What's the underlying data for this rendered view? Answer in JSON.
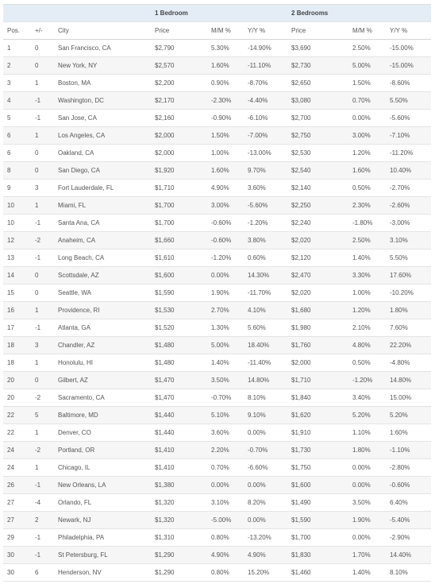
{
  "groups": {
    "one_bedroom": "1 Bedroom",
    "two_bedrooms": "2 Bedrooms"
  },
  "columns": {
    "pos": "Pos.",
    "change": "+/-",
    "city": "City",
    "price1": "Price",
    "mm1": "M/M %",
    "yy1": "Y/Y %",
    "price2": "Price",
    "mm2": "M/M %",
    "yy2": "Y/Y %"
  },
  "rows": [
    [
      "1",
      "0",
      "San Francisco, CA",
      "$2,790",
      "5.30%",
      "-14.90%",
      "$3,690",
      "2.50%",
      "-15.00%"
    ],
    [
      "2",
      "0",
      "New York, NY",
      "$2,570",
      "1.60%",
      "-11.10%",
      "$2,730",
      "5.00%",
      "-15.00%"
    ],
    [
      "3",
      "1",
      "Boston, MA",
      "$2,200",
      "0.90%",
      "-8.70%",
      "$2,650",
      "1.50%",
      "-8.60%"
    ],
    [
      "4",
      "-1",
      "Washington, DC",
      "$2,170",
      "-2.30%",
      "-4.40%",
      "$3,080",
      "0.70%",
      "5.50%"
    ],
    [
      "5",
      "-1",
      "San Jose, CA",
      "$2,160",
      "-0.90%",
      "-6.10%",
      "$2,700",
      "0.00%",
      "-5.60%"
    ],
    [
      "6",
      "1",
      "Los Angeles, CA",
      "$2,000",
      "1.50%",
      "-7.00%",
      "$2,750",
      "3.00%",
      "-7.10%"
    ],
    [
      "6",
      "0",
      "Oakland, CA",
      "$2,000",
      "1.00%",
      "-13.00%",
      "$2,530",
      "1.20%",
      "-11.20%"
    ],
    [
      "8",
      "0",
      "San Diego, CA",
      "$1,920",
      "1.60%",
      "9.70%",
      "$2,540",
      "1.60%",
      "10.40%"
    ],
    [
      "9",
      "3",
      "Fort Lauderdale, FL",
      "$1,710",
      "4.90%",
      "3.60%",
      "$2,140",
      "0.50%",
      "-2.70%"
    ],
    [
      "10",
      "1",
      "Miami, FL",
      "$1,700",
      "3.00%",
      "-5.60%",
      "$2,250",
      "2.30%",
      "-2.60%"
    ],
    [
      "10",
      "-1",
      "Santa Ana, CA",
      "$1,700",
      "-0.60%",
      "-1.20%",
      "$2,240",
      "-1.80%",
      "-3.00%"
    ],
    [
      "12",
      "-2",
      "Anaheim, CA",
      "$1,660",
      "-0.60%",
      "3.80%",
      "$2,020",
      "2.50%",
      "3.10%"
    ],
    [
      "13",
      "-1",
      "Long Beach, CA",
      "$1,610",
      "-1.20%",
      "0.60%",
      "$2,120",
      "1.40%",
      "5.50%"
    ],
    [
      "14",
      "0",
      "Scottsdale, AZ",
      "$1,600",
      "0.00%",
      "14.30%",
      "$2,470",
      "3.30%",
      "17.60%"
    ],
    [
      "15",
      "0",
      "Seattle, WA",
      "$1,590",
      "1.90%",
      "-11.70%",
      "$2,020",
      "1.00%",
      "-10.20%"
    ],
    [
      "16",
      "1",
      "Providence, RI",
      "$1,530",
      "2.70%",
      "4.10%",
      "$1,680",
      "1.20%",
      "1.80%"
    ],
    [
      "17",
      "-1",
      "Atlanta, GA",
      "$1,520",
      "1.30%",
      "5.60%",
      "$1,980",
      "2.10%",
      "7.60%"
    ],
    [
      "18",
      "3",
      "Chandler, AZ",
      "$1,480",
      "5.00%",
      "18.40%",
      "$1,760",
      "4.80%",
      "22.20%"
    ],
    [
      "18",
      "1",
      "Honolulu, HI",
      "$1,480",
      "1.40%",
      "-11.40%",
      "$2,000",
      "0.50%",
      "-4.80%"
    ],
    [
      "20",
      "0",
      "Gilbert, AZ",
      "$1,470",
      "3.50%",
      "14.80%",
      "$1,710",
      "-1.20%",
      "14.80%"
    ],
    [
      "20",
      "-2",
      "Sacramento, CA",
      "$1,470",
      "-0.70%",
      "8.10%",
      "$1,840",
      "3.40%",
      "15.00%"
    ],
    [
      "22",
      "5",
      "Baltimore, MD",
      "$1,440",
      "5.10%",
      "9.10%",
      "$1,620",
      "5.20%",
      "5.20%"
    ],
    [
      "22",
      "1",
      "Denver, CO",
      "$1,440",
      "3.60%",
      "0.00%",
      "$1,910",
      "1.10%",
      "1.60%"
    ],
    [
      "24",
      "-2",
      "Portland, OR",
      "$1,410",
      "2.20%",
      "-0.70%",
      "$1,730",
      "1.80%",
      "-1.10%"
    ],
    [
      "24",
      "1",
      "Chicago, IL",
      "$1,410",
      "0.70%",
      "-6.60%",
      "$1,750",
      "0.00%",
      "-2.80%"
    ],
    [
      "26",
      "-1",
      "New Orleans, LA",
      "$1,380",
      "0.00%",
      "0.00%",
      "$1,600",
      "0.00%",
      "-0.60%"
    ],
    [
      "27",
      "-4",
      "Orlando, FL",
      "$1,320",
      "3.10%",
      "8.20%",
      "$1,490",
      "3.50%",
      "6.40%"
    ],
    [
      "27",
      "2",
      "Newark, NJ",
      "$1,320",
      "-5.00%",
      "0.00%",
      "$1,590",
      "1.90%",
      "-5.40%"
    ],
    [
      "29",
      "-1",
      "Philadelphia, PA",
      "$1,310",
      "0.80%",
      "-13.20%",
      "$1,700",
      "0.00%",
      "-2.90%"
    ],
    [
      "30",
      "-1",
      "St Petersburg, FL",
      "$1,290",
      "4.90%",
      "4.90%",
      "$1,830",
      "1.70%",
      "14.40%"
    ],
    [
      "30",
      "6",
      "Henderson, NV",
      "$1,290",
      "0.80%",
      "15.20%",
      "$1,460",
      "1.40%",
      "8.10%"
    ]
  ]
}
